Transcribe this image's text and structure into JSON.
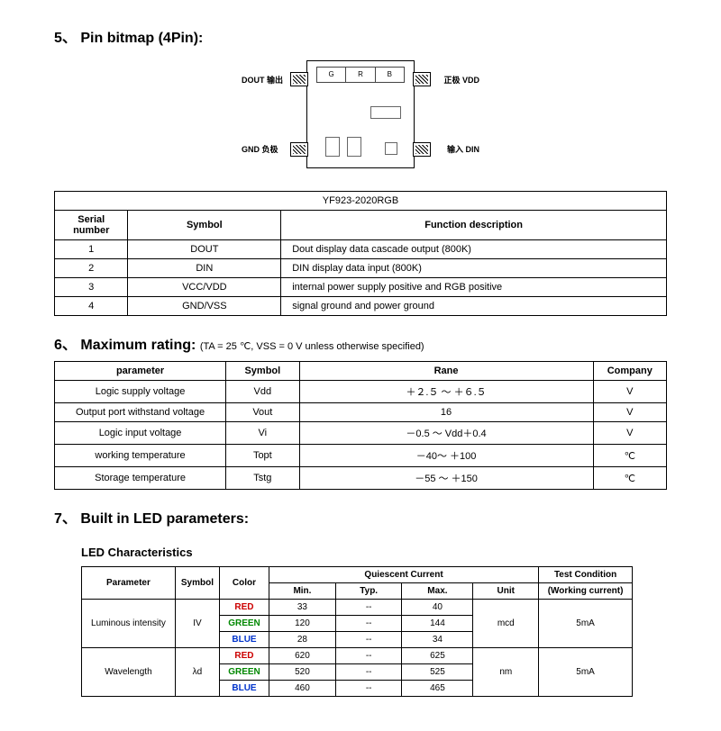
{
  "sections": {
    "pin_bitmap": {
      "number": "5、",
      "title": "Pin bitmap (4Pin):"
    },
    "max_rating": {
      "number": "6、",
      "title": "Maximum rating:",
      "note": "(TA = 25 ℃, VSS = 0 V unless otherwise specified)"
    },
    "led_params": {
      "number": "7、",
      "title": "Built in LED parameters:"
    }
  },
  "diagram": {
    "chip_labels": {
      "g": "G",
      "r": "R",
      "b": "B"
    },
    "pins": {
      "dout": "DOUT 输出",
      "vdd": "正极 VDD",
      "gnd": "GND 负极",
      "din": "输入 DIN"
    }
  },
  "pin_table": {
    "title_span": "YF923-2020RGB",
    "headers": {
      "serial": "Serial number",
      "symbol": "Symbol",
      "desc": "Function description"
    },
    "rows": [
      {
        "n": "1",
        "sym": "DOUT",
        "desc": "Dout display data cascade output (800K)"
      },
      {
        "n": "2",
        "sym": "DIN",
        "desc": "DIN display data input (800K)"
      },
      {
        "n": "3",
        "sym": "VCC/VDD",
        "desc": "internal power supply positive and RGB positive"
      },
      {
        "n": "4",
        "sym": "GND/VSS",
        "desc": "signal ground and power ground"
      }
    ]
  },
  "rating_table": {
    "headers": {
      "param": "parameter",
      "sym": "Symbol",
      "range": "Rane",
      "company": "Company"
    },
    "rows": [
      {
        "p": "Logic supply voltage",
        "s": "Vdd",
        "r": "＋２.５ ～ ＋６.５",
        "u": "V"
      },
      {
        "p": "Output port withstand voltage",
        "s": "Vout",
        "r": "16",
        "u": "V"
      },
      {
        "p": "Logic input voltage",
        "s": "Vi",
        "r": "－0.5 ～ Vdd＋0.4",
        "u": "V"
      },
      {
        "p": "working temperature",
        "s": "Topt",
        "r": "－40～ ＋100",
        "u": "℃"
      },
      {
        "p": "Storage temperature",
        "s": "Tstg",
        "r": "－55 ～ ＋150",
        "u": "℃"
      }
    ]
  },
  "led_table": {
    "title": "LED Characteristics",
    "headers": {
      "param": "Parameter",
      "sym": "Symbol",
      "color": "Color",
      "qc": "Quiescent Current",
      "min": "Min.",
      "typ": "Typ.",
      "max": "Max.",
      "unit": "Unit",
      "cond": "Test Condition",
      "cond2": "(Working current)"
    },
    "groups": [
      {
        "param": "Luminous intensity",
        "sym": "IV",
        "unit": "mcd",
        "cond": "5mA",
        "rows": [
          {
            "color": "RED",
            "cls": "c-red",
            "min": "33",
            "typ": "--",
            "max": "40"
          },
          {
            "color": "GREEN",
            "cls": "c-green",
            "min": "120",
            "typ": "--",
            "max": "144"
          },
          {
            "color": "BLUE",
            "cls": "c-blue",
            "min": "28",
            "typ": "--",
            "max": "34"
          }
        ]
      },
      {
        "param": "Wavelength",
        "sym": "λd",
        "unit": "nm",
        "cond": "5mA",
        "rows": [
          {
            "color": "RED",
            "cls": "c-red",
            "min": "620",
            "typ": "--",
            "max": "625"
          },
          {
            "color": "GREEN",
            "cls": "c-green",
            "min": "520",
            "typ": "--",
            "max": "525"
          },
          {
            "color": "BLUE",
            "cls": "c-blue",
            "min": "460",
            "typ": "--",
            "max": "465"
          }
        ]
      }
    ]
  }
}
